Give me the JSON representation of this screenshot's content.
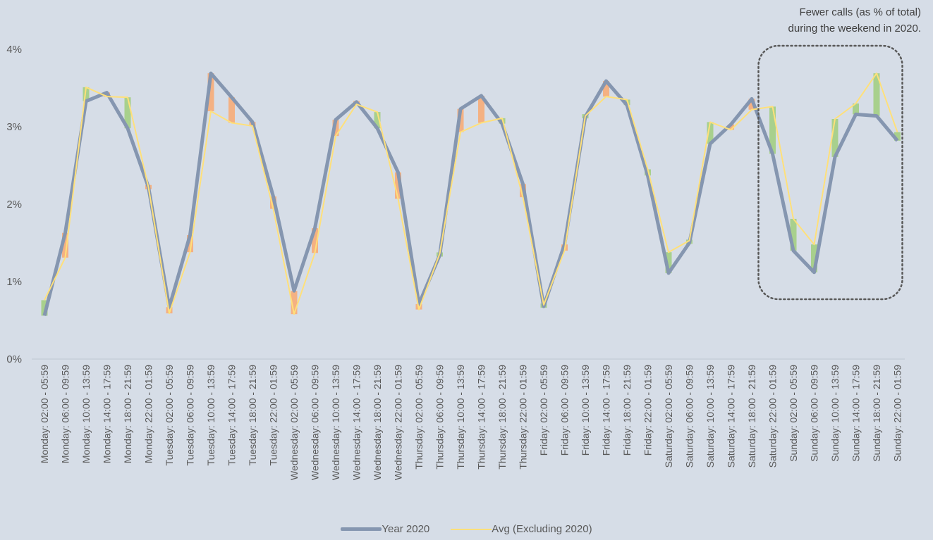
{
  "annotation": {
    "line1": "Fewer calls (as % of total)",
    "line2": "during the weekend in 2020."
  },
  "legend": {
    "year2020": "Year 2020",
    "avg": "Avg (Excluding 2020)"
  },
  "colors": {
    "background": "#d6dde7",
    "year2020": "#8596b0",
    "avg": "#ffe07a",
    "bar_increase": "#a8d08d",
    "bar_decrease": "#f4b183",
    "highlight_box": "#595959"
  },
  "chart_data": {
    "type": "line",
    "title": "",
    "xlabel": "",
    "ylabel": "",
    "ylim": [
      0,
      0.04
    ],
    "yticks": [
      "0%",
      "1%",
      "2%",
      "3%",
      "4%"
    ],
    "grid": false,
    "legend_position": "bottom",
    "categories": [
      "Monday: 02:00 - 05:59",
      "Monday: 06:00 - 09:59",
      "Monday: 10:00 - 13:59",
      "Monday: 14:00 - 17:59",
      "Monday: 18:00 - 21:59",
      "Monday: 22:00 - 01:59",
      "Tuesday: 02:00 - 05:59",
      "Tuesday: 06:00 - 09:59",
      "Tuesday: 10:00 - 13:59",
      "Tuesday: 14:00 - 17:59",
      "Tuesday: 18:00 - 21:59",
      "Tuesday: 22:00 - 01:59",
      "Wednesday: 02:00 - 05:59",
      "Wednesday: 06:00 - 09:59",
      "Wednesday: 10:00 - 13:59",
      "Wednesday: 14:00 - 17:59",
      "Wednesday: 18:00 - 21:59",
      "Wednesday: 22:00 - 01:59",
      "Thursday: 02:00 - 05:59",
      "Thursday: 06:00 - 09:59",
      "Thursday: 10:00 - 13:59",
      "Thursday: 14:00 - 17:59",
      "Thursday: 18:00 - 21:59",
      "Thursday: 22:00 - 01:59",
      "Friday: 02:00 - 05:59",
      "Friday: 06:00 - 09:59",
      "Friday: 10:00 - 13:59",
      "Friday: 14:00 - 17:59",
      "Friday: 18:00 - 21:59",
      "Friday: 22:00 - 01:59",
      "Saturday: 02:00 - 05:59",
      "Saturday: 06:00 - 09:59",
      "Saturday: 10:00 - 13:59",
      "Saturday: 14:00 - 17:59",
      "Saturday: 18:00 - 21:59",
      "Saturday: 22:00 - 01:59",
      "Sunday: 02:00 - 05:59",
      "Sunday: 06:00 - 09:59",
      "Sunday: 10:00 - 13:59",
      "Sunday: 14:00 - 17:59",
      "Sunday: 18:00 - 21:59",
      "Sunday: 22:00 - 01:59"
    ],
    "series": [
      {
        "name": "Year 2020",
        "values": [
          0.0056,
          0.0163,
          0.0333,
          0.0344,
          0.0298,
          0.0222,
          0.0067,
          0.016,
          0.0369,
          0.0338,
          0.0306,
          0.021,
          0.0088,
          0.0169,
          0.0309,
          0.0332,
          0.0298,
          0.0241,
          0.0071,
          0.0134,
          0.0323,
          0.034,
          0.0304,
          0.0226,
          0.0068,
          0.0148,
          0.0313,
          0.0359,
          0.0328,
          0.0237,
          0.0111,
          0.015,
          0.0278,
          0.0303,
          0.0336,
          0.0265,
          0.014,
          0.0112,
          0.0261,
          0.0316,
          0.0314,
          0.0282
        ]
      },
      {
        "name": "Avg (Excluding 2020)",
        "values": [
          0.0076,
          0.0131,
          0.0351,
          0.0339,
          0.0338,
          0.0222,
          0.0059,
          0.0138,
          0.032,
          0.0305,
          0.0301,
          0.0194,
          0.0058,
          0.0137,
          0.0288,
          0.0329,
          0.0319,
          0.0207,
          0.0064,
          0.0136,
          0.0293,
          0.0305,
          0.0311,
          0.0209,
          0.007,
          0.014,
          0.0314,
          0.0339,
          0.0335,
          0.0245,
          0.0138,
          0.0153,
          0.0306,
          0.0296,
          0.0322,
          0.0326,
          0.0181,
          0.0148,
          0.031,
          0.033,
          0.0369,
          0.0293
        ]
      }
    ],
    "highlight": {
      "from": "Saturday: 22:00 - 01:59",
      "to": "Sunday: 22:00 - 01:59",
      "style": "dotted rounded box"
    }
  }
}
